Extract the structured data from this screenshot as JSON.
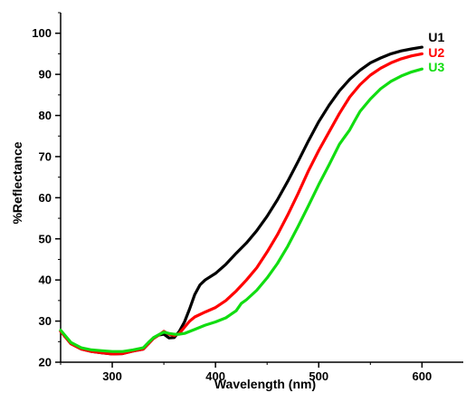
{
  "chart_data": {
    "type": "line",
    "title": "",
    "xlabel": "Wavelength (nm)",
    "ylabel": "%Reflectance",
    "xlim": [
      250,
      640
    ],
    "ylim": [
      20,
      105
    ],
    "x_ticks": [
      300,
      400,
      500,
      600
    ],
    "y_ticks": [
      20,
      30,
      40,
      50,
      60,
      70,
      80,
      90,
      100
    ],
    "x_tick_labels": [
      "300",
      "400",
      "500",
      "600"
    ],
    "y_tick_labels": [
      "20",
      "30",
      "40",
      "50",
      "60",
      "70",
      "80",
      "90",
      "100"
    ],
    "legend_placement": "top-right",
    "grid": false,
    "series": [
      {
        "name": "U1",
        "color": "#000000",
        "x": [
          250,
          260,
          270,
          280,
          290,
          300,
          310,
          320,
          330,
          335,
          340,
          345,
          350,
          355,
          360,
          365,
          370,
          375,
          380,
          385,
          390,
          400,
          410,
          420,
          430,
          440,
          450,
          460,
          470,
          480,
          490,
          500,
          510,
          520,
          530,
          540,
          550,
          560,
          570,
          580,
          590,
          600
        ],
        "y": [
          27.5,
          24.5,
          23.2,
          22.6,
          22.3,
          22.0,
          22.1,
          22.7,
          23.2,
          24.5,
          25.8,
          26.6,
          26.8,
          25.9,
          26.0,
          27.5,
          29.8,
          33.0,
          36.5,
          38.8,
          40.0,
          41.6,
          43.8,
          46.5,
          49.0,
          52.0,
          55.5,
          59.5,
          64.0,
          68.8,
          73.8,
          78.5,
          82.5,
          86.0,
          88.8,
          91.0,
          92.8,
          94.0,
          95.0,
          95.7,
          96.2,
          96.6
        ]
      },
      {
        "name": "U2",
        "color": "#ff0000",
        "x": [
          250,
          260,
          270,
          280,
          290,
          300,
          310,
          320,
          330,
          335,
          340,
          345,
          350,
          355,
          360,
          365,
          370,
          375,
          380,
          390,
          400,
          410,
          420,
          430,
          440,
          450,
          460,
          470,
          480,
          490,
          500,
          510,
          520,
          530,
          540,
          550,
          560,
          570,
          580,
          590,
          600
        ],
        "y": [
          27.5,
          24.5,
          23.2,
          22.6,
          22.3,
          22.0,
          22.1,
          22.7,
          23.2,
          24.5,
          25.8,
          26.6,
          27.5,
          26.8,
          26.5,
          27.0,
          28.5,
          30.0,
          31.0,
          32.2,
          33.3,
          35.0,
          37.3,
          40.0,
          43.0,
          46.8,
          51.0,
          55.8,
          61.0,
          66.5,
          71.5,
          76.0,
          80.5,
          84.5,
          87.5,
          89.8,
          91.5,
          92.8,
          93.8,
          94.5,
          95.0
        ]
      },
      {
        "name": "U3",
        "color": "#11dd11",
        "x": [
          250,
          260,
          270,
          280,
          290,
          300,
          310,
          320,
          330,
          335,
          340,
          345,
          350,
          355,
          360,
          365,
          370,
          380,
          390,
          400,
          410,
          420,
          425,
          430,
          440,
          450,
          460,
          470,
          480,
          490,
          500,
          510,
          520,
          530,
          535,
          540,
          550,
          560,
          570,
          580,
          590,
          600
        ],
        "y": [
          27.8,
          24.8,
          23.5,
          23.0,
          22.8,
          22.6,
          22.6,
          23.0,
          23.5,
          24.8,
          26.0,
          26.7,
          27.3,
          27.0,
          26.8,
          26.8,
          27.0,
          28.0,
          29.0,
          29.8,
          30.8,
          32.5,
          34.3,
          35.2,
          37.5,
          40.5,
          44.0,
          48.2,
          53.0,
          58.0,
          63.2,
          68.0,
          73.0,
          76.5,
          78.8,
          81.0,
          84.0,
          86.5,
          88.3,
          89.6,
          90.6,
          91.3
        ]
      }
    ]
  }
}
